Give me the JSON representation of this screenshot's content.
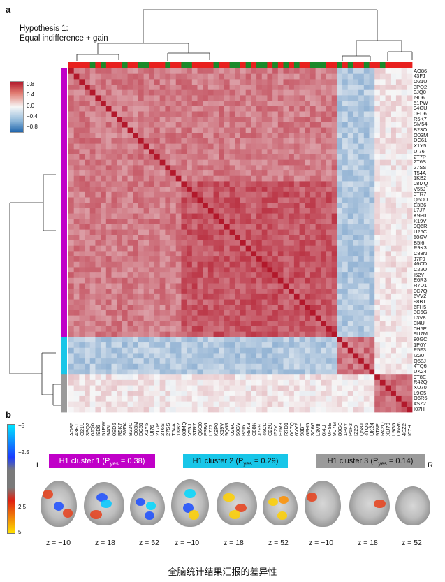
{
  "panel_a": {
    "letter": "a",
    "title_line1": "Hypothesis 1:",
    "title_line2": "Equal indifference + gain",
    "colorbar_ticks": [
      "0.8",
      "0.4",
      "0.0",
      "−0.4",
      "−0.8"
    ],
    "row_labels": [
      "AO86",
      "43FJ",
      "O21U",
      "3PQ2",
      "0JQ0",
      "I9D6",
      "51PW",
      "94GU",
      "0ED6",
      "R5K7",
      "SM54",
      "B23O",
      "O03M",
      "DC61",
      "X1Y5",
      "UI76",
      "2T7P",
      "2T6S",
      "27SS",
      "T54A",
      "1KB2",
      "08MQ",
      "V55J",
      "3TR7",
      "Q6O0",
      "E3B6",
      "L7J7",
      "K9P0",
      "X19V",
      "9Q6R",
      "U26C",
      "50GV",
      "B5I6",
      "R9K3",
      "C88N",
      "J7F9",
      "46CD",
      "C22U",
      "I52Y",
      "E6R3",
      "R7D1",
      "0C7Q",
      "6VV2",
      "98BT",
      "6FH5",
      "3C6G",
      "L3V8",
      "0I4U",
      "0H5E",
      "9U7M",
      "80GC",
      "1P0Y",
      "P5F3",
      "IZ20",
      "Q58J",
      "4TQ6",
      "UK24",
      "9T8E",
      "R42Q",
      "XU70",
      "L9G5",
      "O6R6",
      "4SZ2",
      "I07H"
    ],
    "col_labels": [
      "AO86",
      "43FJ",
      "O21U",
      "3PQ2",
      "0JQ0",
      "I9D6",
      "51PW",
      "94GU",
      "0ED6",
      "R5K7",
      "SM54",
      "B23O",
      "O03M",
      "DC61",
      "X1Y5",
      "UI76",
      "2T7P",
      "2T6S",
      "27SS",
      "T54A",
      "1KB2",
      "08MQ",
      "V55J",
      "3TR7",
      "Q6O0",
      "E3B6",
      "L7J7",
      "K9P0",
      "X19V",
      "9Q6R",
      "U26C",
      "50GV",
      "B5I6",
      "R9K3",
      "C88N",
      "J7F9",
      "46CD",
      "C22U",
      "I52Y",
      "E6R3",
      "R7D1",
      "0C7Q",
      "6VV2",
      "98BT",
      "6FH5",
      "3C6G",
      "L3V8",
      "0I4U",
      "0H5E",
      "9U7M",
      "80GC",
      "1P0Y",
      "P5F3",
      "IZ20",
      "Q58J",
      "4TQ6",
      "UK24",
      "9T8E",
      "R42Q",
      "XU70",
      "L9G5",
      "O6R6",
      "4SZ2",
      "I07H"
    ],
    "top_strip_green": [
      4,
      6,
      10,
      13,
      14,
      18,
      21,
      22,
      27,
      30,
      31,
      33,
      35,
      36,
      38,
      40,
      42,
      45,
      46,
      47,
      50,
      52,
      55,
      58
    ],
    "cluster_sizes": [
      50,
      7,
      7
    ],
    "cluster_colors": [
      "#c000c8",
      "#18c6e8",
      "#9a9a9a"
    ],
    "colors": {
      "pos": "#b2182b",
      "neg": "#2166ac",
      "mid": "#f7f7f7",
      "green": "#1a8a2a",
      "red": "#e8201e"
    }
  },
  "panel_b": {
    "letter": "b",
    "scale_ticks": [
      "−5",
      "−2.5",
      "2.5",
      "5"
    ],
    "side_left": "L",
    "side_right": "R",
    "clusters": [
      {
        "label": "H1 cluster 1 (P",
        "sub": "yes",
        "value": " = 0.38)",
        "bg": "#c000c8",
        "fg": "#ffffff"
      },
      {
        "label": "H1 cluster 2 (P",
        "sub": "yes",
        "value": " = 0.29)",
        "bg": "#18c6e8",
        "fg": "#111111"
      },
      {
        "label": "H1 cluster 3 (P",
        "sub": "yes",
        "value": " = 0.14)",
        "bg": "#9a9a9a",
        "fg": "#111111"
      }
    ],
    "z_labels": [
      "z = −10",
      "z = 18",
      "z = 52",
      "z = −10",
      "z = 18",
      "z = 52",
      "z = −10",
      "z = 18",
      "z = 52"
    ]
  },
  "caption": "全脑统计结果汇报的差异性"
}
